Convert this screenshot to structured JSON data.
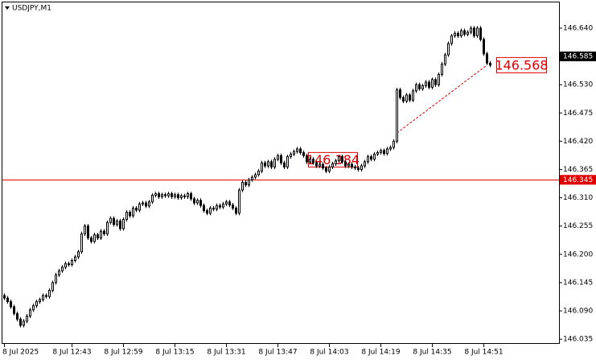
{
  "chart_data": {
    "type": "candlestick",
    "title": "USDJPY,M1",
    "categories": [
      "8 Jul 2025",
      null,
      null,
      null,
      null,
      null,
      null,
      null,
      null,
      null,
      null,
      null,
      null,
      null,
      null,
      null,
      null,
      null,
      null,
      null,
      null,
      "8 Jul 12:43",
      null,
      null,
      null,
      null,
      null,
      null,
      null,
      null,
      null,
      null,
      null,
      null,
      null,
      null,
      null,
      "8 Jul 12:59",
      null,
      null,
      null,
      null,
      null,
      null,
      null,
      null,
      null,
      null,
      null,
      null,
      null,
      null,
      null,
      "8 Jul 13:15",
      null,
      null,
      null,
      null,
      null,
      null,
      null,
      null,
      null,
      null,
      null,
      null,
      null,
      null,
      null,
      "8 Jul 13:31",
      null,
      null,
      null,
      null,
      null,
      null,
      null,
      null,
      null,
      null,
      null,
      null,
      null,
      null,
      null,
      "8 Jul 13:47",
      null,
      null,
      null,
      null,
      null,
      null,
      null,
      null,
      null,
      null,
      null,
      null,
      null,
      null,
      null,
      "8 Jul 14:03",
      null,
      null,
      null,
      null,
      null,
      null,
      null,
      null,
      null,
      null,
      null,
      null,
      null,
      null,
      null,
      "8 Jul 14:19",
      null,
      null,
      null,
      null,
      null,
      null,
      null,
      null,
      null,
      null,
      null,
      null,
      null,
      null,
      null,
      "8 Jul 14:35",
      null,
      null,
      null,
      null,
      null,
      null,
      null,
      null,
      null,
      null,
      null,
      null,
      null,
      null,
      null,
      "8 Jul 14:51",
      null,
      null
    ],
    "open": [
      146.12,
      146.115,
      146.108,
      146.098,
      146.085,
      146.074,
      146.062,
      146.07,
      146.08,
      146.092,
      146.1,
      146.108,
      146.112,
      146.12,
      146.118,
      146.13,
      146.145,
      146.16,
      146.168,
      146.175,
      146.182,
      146.18,
      146.188,
      146.195,
      146.205,
      146.24,
      146.255,
      146.232,
      146.225,
      146.238,
      146.232,
      146.245,
      146.24,
      146.262,
      146.27,
      146.258,
      146.265,
      146.25,
      146.268,
      146.282,
      146.275,
      146.29,
      146.286,
      146.298,
      146.3,
      146.294,
      146.302,
      146.315,
      146.318,
      146.312,
      146.316,
      146.314,
      146.318,
      146.312,
      146.316,
      146.31,
      146.314,
      146.312,
      146.318,
      146.308,
      146.3,
      146.305,
      146.295,
      146.285,
      146.28,
      146.29,
      146.288,
      146.295,
      146.292,
      146.298,
      146.302,
      146.296,
      146.29,
      146.28,
      146.325,
      146.34,
      146.335,
      146.345,
      146.35,
      146.355,
      146.362,
      146.378,
      146.372,
      146.38,
      146.37,
      146.385,
      146.392,
      146.378,
      146.37,
      146.39,
      146.395,
      146.4,
      146.405,
      146.398,
      146.392,
      146.38,
      146.385,
      146.378,
      146.372,
      146.375,
      146.368,
      146.362,
      146.37,
      146.376,
      146.382,
      146.39,
      146.38,
      146.372,
      146.375,
      146.37,
      146.368,
      146.365,
      146.372,
      146.38,
      146.39,
      146.385,
      146.395,
      146.398,
      146.402,
      146.396,
      146.405,
      146.408,
      146.42,
      146.52,
      146.505,
      146.498,
      146.51,
      146.5,
      146.518,
      146.53,
      146.522,
      146.528,
      146.535,
      146.525,
      146.54,
      146.53,
      146.55,
      146.57,
      146.588,
      146.61,
      146.625,
      146.63,
      146.625,
      146.635,
      146.628,
      146.632,
      146.64,
      146.625,
      146.64,
      146.618,
      146.59,
      146.572
    ],
    "high": [
      146.124,
      146.119,
      146.112,
      146.102,
      146.089,
      146.078,
      146.074,
      146.084,
      146.096,
      146.104,
      146.112,
      146.116,
      146.124,
      146.124,
      146.134,
      146.149,
      146.164,
      146.172,
      146.179,
      146.186,
      146.186,
      146.192,
      146.199,
      146.209,
      146.244,
      146.259,
      146.259,
      146.236,
      146.242,
      146.242,
      146.249,
      146.249,
      146.266,
      146.274,
      146.274,
      146.269,
      146.269,
      146.272,
      146.286,
      146.286,
      146.294,
      146.294,
      146.302,
      146.304,
      146.304,
      146.306,
      146.319,
      146.322,
      146.322,
      146.32,
      146.32,
      146.322,
      146.322,
      146.32,
      146.32,
      146.318,
      146.318,
      146.322,
      146.322,
      146.312,
      146.309,
      146.309,
      146.299,
      146.289,
      146.294,
      146.294,
      146.299,
      146.299,
      146.302,
      146.306,
      146.306,
      146.3,
      146.294,
      146.329,
      146.344,
      146.344,
      146.349,
      146.354,
      146.359,
      146.366,
      146.382,
      146.382,
      146.384,
      146.384,
      146.389,
      146.396,
      146.396,
      146.382,
      146.394,
      146.399,
      146.404,
      146.409,
      146.409,
      146.402,
      146.396,
      146.389,
      146.389,
      146.382,
      146.379,
      146.379,
      146.372,
      146.374,
      146.38,
      146.386,
      146.394,
      146.394,
      146.384,
      146.379,
      146.379,
      146.374,
      146.372,
      146.376,
      146.384,
      146.394,
      146.394,
      146.399,
      146.402,
      146.406,
      146.406,
      146.409,
      146.412,
      146.424,
      146.524,
      146.524,
      146.509,
      146.514,
      146.514,
      146.522,
      146.534,
      146.534,
      146.532,
      146.539,
      146.539,
      146.544,
      146.544,
      146.554,
      146.574,
      146.592,
      146.614,
      146.629,
      146.634,
      146.634,
      146.639,
      146.639,
      146.636,
      146.644,
      146.644,
      146.644,
      146.644,
      146.622,
      146.594,
      146.576
    ],
    "low": [
      146.111,
      146.104,
      146.094,
      146.081,
      146.07,
      146.058,
      146.058,
      146.066,
      146.076,
      146.088,
      146.096,
      146.104,
      146.108,
      146.114,
      146.114,
      146.126,
      146.141,
      146.156,
      146.164,
      146.171,
      146.176,
      146.176,
      146.184,
      146.191,
      146.201,
      146.236,
      146.228,
      146.221,
      146.221,
      146.228,
      146.228,
      146.236,
      146.236,
      146.258,
      146.254,
      146.254,
      146.246,
      146.246,
      146.264,
      146.271,
      146.271,
      146.282,
      146.282,
      146.294,
      146.29,
      146.29,
      146.298,
      146.311,
      146.308,
      146.308,
      146.31,
      146.31,
      146.308,
      146.308,
      146.306,
      146.306,
      146.308,
      146.308,
      146.304,
      146.296,
      146.296,
      146.291,
      146.281,
      146.276,
      146.276,
      146.284,
      146.284,
      146.288,
      146.288,
      146.294,
      146.292,
      146.286,
      146.276,
      146.276,
      146.321,
      146.331,
      146.331,
      146.341,
      146.346,
      146.351,
      146.358,
      146.368,
      146.368,
      146.366,
      146.366,
      146.381,
      146.374,
      146.366,
      146.366,
      146.386,
      146.391,
      146.396,
      146.394,
      146.388,
      146.376,
      146.376,
      146.374,
      146.368,
      146.368,
      146.364,
      146.358,
      146.358,
      146.366,
      146.372,
      146.378,
      146.376,
      146.368,
      146.368,
      146.366,
      146.364,
      146.361,
      146.361,
      146.368,
      146.376,
      146.381,
      146.381,
      146.391,
      146.394,
      146.392,
      146.392,
      146.401,
      146.404,
      146.416,
      146.501,
      146.494,
      146.494,
      146.496,
      146.496,
      146.514,
      146.518,
      146.518,
      146.524,
      146.521,
      146.521,
      146.526,
      146.526,
      146.546,
      146.566,
      146.584,
      146.606,
      146.621,
      146.621,
      146.621,
      146.624,
      146.624,
      146.628,
      146.621,
      146.621,
      146.614,
      146.586,
      146.568,
      146.564
    ],
    "close": [
      146.115,
      146.108,
      146.098,
      146.085,
      146.074,
      146.062,
      146.07,
      146.08,
      146.092,
      146.1,
      146.108,
      146.112,
      146.12,
      146.118,
      146.13,
      146.145,
      146.16,
      146.168,
      146.175,
      146.182,
      146.18,
      146.188,
      146.195,
      146.205,
      146.24,
      146.255,
      146.232,
      146.225,
      146.238,
      146.232,
      146.245,
      146.24,
      146.262,
      146.27,
      146.258,
      146.265,
      146.25,
      146.268,
      146.282,
      146.275,
      146.29,
      146.286,
      146.298,
      146.3,
      146.294,
      146.302,
      146.315,
      146.318,
      146.312,
      146.316,
      146.314,
      146.318,
      146.312,
      146.316,
      146.31,
      146.314,
      146.312,
      146.318,
      146.308,
      146.3,
      146.305,
      146.295,
      146.285,
      146.28,
      146.29,
      146.288,
      146.295,
      146.292,
      146.298,
      146.302,
      146.296,
      146.29,
      146.28,
      146.325,
      146.34,
      146.335,
      146.345,
      146.35,
      146.355,
      146.362,
      146.378,
      146.372,
      146.38,
      146.37,
      146.385,
      146.392,
      146.378,
      146.37,
      146.39,
      146.395,
      146.4,
      146.405,
      146.398,
      146.392,
      146.38,
      146.385,
      146.378,
      146.372,
      146.375,
      146.368,
      146.362,
      146.37,
      146.376,
      146.382,
      146.39,
      146.38,
      146.372,
      146.375,
      146.37,
      146.368,
      146.365,
      146.372,
      146.38,
      146.39,
      146.385,
      146.395,
      146.398,
      146.402,
      146.396,
      146.405,
      146.408,
      146.42,
      146.52,
      146.505,
      146.498,
      146.51,
      146.5,
      146.518,
      146.53,
      146.522,
      146.528,
      146.535,
      146.525,
      146.54,
      146.53,
      146.55,
      146.57,
      146.588,
      146.61,
      146.625,
      146.63,
      146.625,
      146.635,
      146.628,
      146.632,
      146.64,
      146.625,
      146.64,
      146.618,
      146.59,
      146.572,
      146.568
    ],
    "ylim": [
      146.029,
      146.69
    ],
    "yticks": [
      {
        "value": 146.64,
        "label": "146.640"
      },
      {
        "value": 146.585,
        "label": "146.585"
      },
      {
        "value": 146.53,
        "label": "146.530"
      },
      {
        "value": 146.475,
        "label": "146.475"
      },
      {
        "value": 146.42,
        "label": "146.420"
      },
      {
        "value": 146.365,
        "label": "146.365"
      },
      {
        "value": 146.31,
        "label": "146.310"
      },
      {
        "value": 146.255,
        "label": "146.255"
      },
      {
        "value": 146.2,
        "label": "146.200"
      },
      {
        "value": 146.145,
        "label": "146.145"
      },
      {
        "value": 146.09,
        "label": "146.090"
      },
      {
        "value": 146.035,
        "label": "146.035"
      }
    ],
    "bid_price": 146.585,
    "hline": {
      "value": 146.345,
      "color": "#e00000"
    },
    "trendline": {
      "x": [
        122,
        150
      ],
      "values": [
        146.436,
        146.568
      ],
      "color": "#e00000"
    },
    "price_label": {
      "x": 95,
      "value": 146.384,
      "color": "#e00000"
    },
    "up_color": "#ffffff",
    "down_color": "#000000",
    "grid": false
  }
}
